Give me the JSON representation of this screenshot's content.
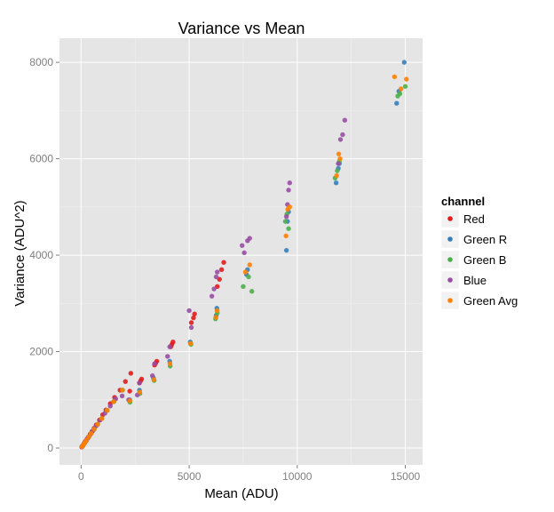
{
  "chart_data": {
    "type": "scatter",
    "title": "Variance vs Mean",
    "xlabel": "Mean (ADU)",
    "ylabel": "Variance (ADU^2)",
    "xlim": [
      -1000,
      15800
    ],
    "ylim": [
      -350,
      8500
    ],
    "xticks": [
      0,
      5000,
      10000,
      15000
    ],
    "yticks": [
      0,
      2000,
      4000,
      6000,
      8000
    ],
    "xtick_labels": [
      "0",
      "5000",
      "10000",
      "15000"
    ],
    "ytick_labels": [
      "0",
      "2000",
      "4000",
      "6000",
      "8000"
    ],
    "grid": true,
    "legend": {
      "title": "channel",
      "position": "right"
    },
    "series": [
      {
        "name": "Red",
        "color": "#e41a1c",
        "x": [
          30,
          60,
          90,
          130,
          170,
          220,
          280,
          340,
          420,
          500,
          600,
          700,
          850,
          1000,
          1150,
          1350,
          1550,
          1800,
          2050,
          2300,
          2250,
          2700,
          2750,
          2800,
          3400,
          3450,
          3500,
          4150,
          4200,
          4250,
          5100,
          5200,
          5250,
          6300,
          6400,
          6500,
          6600
        ],
        "y": [
          20,
          40,
          60,
          90,
          120,
          150,
          190,
          230,
          290,
          340,
          410,
          480,
          580,
          690,
          790,
          920,
          1050,
          1200,
          1380,
          1550,
          1180,
          1350,
          1390,
          1430,
          1720,
          1760,
          1800,
          2100,
          2150,
          2200,
          2600,
          2700,
          2780,
          3350,
          3500,
          3700,
          3850
        ]
      },
      {
        "name": "Green R",
        "color": "#377eb8",
        "x": [
          40,
          80,
          120,
          180,
          250,
          350,
          460,
          600,
          760,
          950,
          1200,
          1500,
          1900,
          2250,
          2700,
          3350,
          4100,
          5050,
          6250,
          6280,
          7650,
          7700,
          9500,
          9550,
          9600,
          11800,
          11900,
          11950,
          14600,
          14700,
          14950
        ],
        "y": [
          25,
          50,
          80,
          115,
          160,
          225,
          300,
          390,
          490,
          610,
          780,
          960,
          1200,
          1000,
          1200,
          1450,
          1800,
          2200,
          2750,
          2900,
          3600,
          3700,
          4100,
          4700,
          4900,
          5500,
          5800,
          5900,
          7150,
          7400,
          8000
        ]
      },
      {
        "name": "Green B",
        "color": "#4daf4a",
        "x": [
          45,
          85,
          125,
          185,
          255,
          355,
          465,
          610,
          770,
          960,
          1210,
          1520,
          1920,
          2260,
          2720,
          3380,
          4120,
          5080,
          6220,
          6300,
          7500,
          7750,
          7900,
          9450,
          9520,
          9600,
          11750,
          11850,
          11950,
          14650,
          14750,
          15000
        ],
        "y": [
          28,
          52,
          82,
          118,
          162,
          228,
          302,
          393,
          492,
          612,
          782,
          962,
          1202,
          950,
          1130,
          1400,
          1700,
          2150,
          2680,
          2800,
          3350,
          3550,
          3250,
          4700,
          4850,
          4550,
          5600,
          5750,
          5950,
          7300,
          7350,
          7500
        ]
      },
      {
        "name": "Blue",
        "color": "#984ea3",
        "x": [
          35,
          70,
          110,
          160,
          230,
          320,
          420,
          550,
          700,
          880,
          1100,
          1350,
          1600,
          1900,
          2200,
          2600,
          2700,
          3300,
          3400,
          4000,
          4100,
          5000,
          5100,
          6050,
          6150,
          6250,
          6300,
          7450,
          7550,
          7700,
          7800,
          9500,
          9550,
          9600,
          9650,
          11900,
          12000,
          12100,
          12200
        ],
        "y": [
          22,
          45,
          70,
          105,
          150,
          210,
          280,
          360,
          460,
          580,
          720,
          870,
          1020,
          1080,
          1000,
          1100,
          1350,
          1500,
          1750,
          1900,
          2100,
          2850,
          2500,
          3150,
          3300,
          3550,
          3650,
          4200,
          4050,
          4300,
          4350,
          4800,
          5050,
          5350,
          5500,
          5900,
          6400,
          6500,
          6800
        ]
      },
      {
        "name": "Green Avg",
        "color": "#ff7f00",
        "x": [
          42,
          82,
          122,
          182,
          252,
          352,
          462,
          605,
          765,
          955,
          1205,
          1510,
          1910,
          2255,
          2710,
          3365,
          4110,
          5065,
          6235,
          6290,
          7600,
          7800,
          9480,
          9560,
          9650,
          11820,
          11920,
          11980,
          14500,
          14800,
          15050
        ],
        "y": [
          26,
          51,
          81,
          116,
          161,
          226,
          301,
          391,
          491,
          611,
          781,
          961,
          1201,
          980,
          1160,
          1420,
          1750,
          2170,
          2710,
          2850,
          3650,
          3800,
          4400,
          4950,
          5000,
          5650,
          6100,
          6000,
          7700,
          7450,
          7650
        ]
      }
    ]
  }
}
